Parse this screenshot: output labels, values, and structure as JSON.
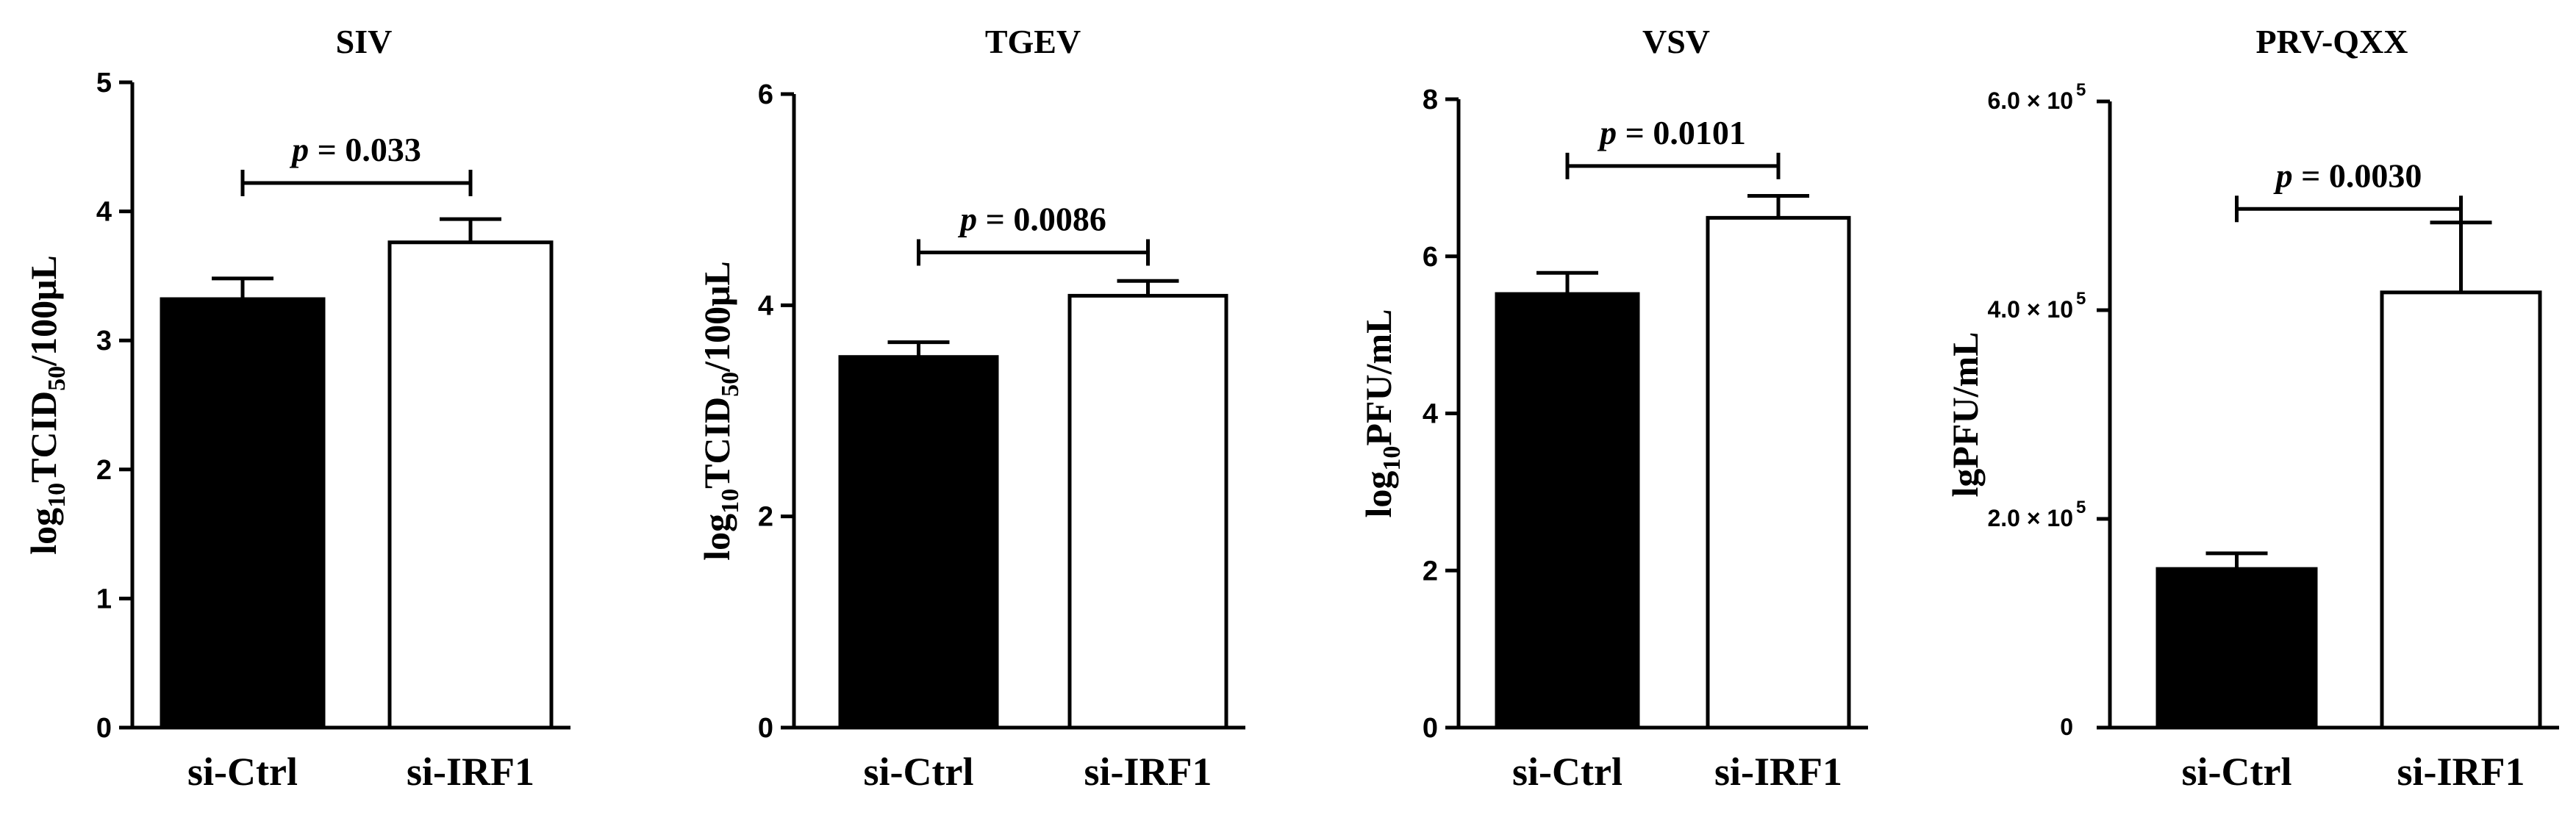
{
  "colors": {
    "ink": "#000000",
    "paper": "#ffffff",
    "filled_bar": "#000000",
    "open_bar": "#ffffff"
  },
  "chart_data": [
    {
      "type": "bar",
      "title": "SIV",
      "categories": [
        "si-Ctrl",
        "si-IRF1"
      ],
      "values": [
        3.32,
        3.76
      ],
      "errors": [
        0.16,
        0.18
      ],
      "bar_fill": [
        "#000000",
        "#ffffff"
      ],
      "ylabel": {
        "main": "log",
        "sub1": "10",
        "mid": "TCID",
        "sub2": "50",
        "tail": "/100μL"
      },
      "ylim": [
        0,
        5
      ],
      "yticks": [
        0,
        1,
        2,
        3,
        4,
        5
      ],
      "ytick_labels": [
        "0",
        "1",
        "2",
        "3",
        "4",
        "5"
      ],
      "annotation": {
        "p_symbol": "p",
        "p_value": "= 0.033",
        "level": 4.22
      }
    },
    {
      "type": "bar",
      "title": "TGEV",
      "categories": [
        "si-Ctrl",
        "si-IRF1"
      ],
      "values": [
        3.51,
        4.09
      ],
      "errors": [
        0.14,
        0.14
      ],
      "bar_fill": [
        "#000000",
        "#ffffff"
      ],
      "ylabel": {
        "main": "log",
        "sub1": "10",
        "mid": "TCID",
        "sub2": "50",
        "tail": "/100μL"
      },
      "ylim": [
        0,
        6
      ],
      "yticks": [
        0,
        2,
        4,
        6
      ],
      "ytick_labels": [
        "0",
        "2",
        "4",
        "6"
      ],
      "annotation": {
        "p_symbol": "p",
        "p_value": "= 0.0086",
        "level": 4.5
      }
    },
    {
      "type": "bar",
      "title": "VSV",
      "categories": [
        "si-Ctrl",
        "si-IRF1"
      ],
      "values": [
        5.52,
        6.49
      ],
      "errors": [
        0.27,
        0.28
      ],
      "bar_fill": [
        "#000000",
        "#ffffff"
      ],
      "ylabel": {
        "main": "log",
        "sub1": "10",
        "mid": "PFU/mL"
      },
      "ylim": [
        0,
        8
      ],
      "yticks": [
        0,
        2,
        4,
        6,
        8
      ],
      "ytick_labels": [
        "0",
        "2",
        "4",
        "6",
        "8"
      ],
      "annotation": {
        "p_symbol": "p",
        "p_value": "= 0.0101",
        "level": 7.15
      }
    },
    {
      "type": "bar",
      "title": "PRV-QXX",
      "categories": [
        "si-Ctrl",
        "si-IRF1"
      ],
      "values": [
        152000,
        417000
      ],
      "errors": [
        15000,
        67000
      ],
      "bar_fill": [
        "#000000",
        "#ffffff"
      ],
      "ylabel": {
        "main": "lgPFU/mL"
      },
      "ylim": [
        0,
        600000
      ],
      "yticks": [
        0,
        200000,
        400000,
        600000
      ],
      "ytick_labels": [
        {
          "base": "0",
          "exp": ""
        },
        {
          "base": "2.0 × 10",
          "exp": "5"
        },
        {
          "base": "4.0 × 10",
          "exp": "5"
        },
        {
          "base": "6.0 × 10",
          "exp": "5"
        }
      ],
      "annotation": {
        "p_symbol": "p",
        "p_value": "= 0.0030",
        "level": 497000
      }
    }
  ]
}
